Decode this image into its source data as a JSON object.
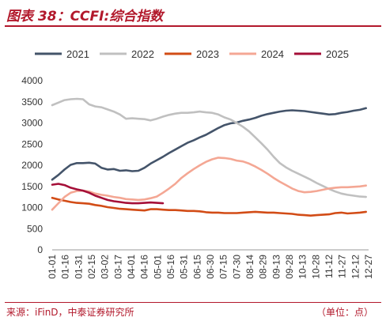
{
  "header": {
    "title": "图表 38：CCFI:综合指数"
  },
  "footer": {
    "source": "来源：iFinD，中泰证券研究所",
    "unit": "（单位：点）"
  },
  "chart_data": {
    "type": "line",
    "title": "",
    "xlabel": "",
    "ylabel": "",
    "ylim": [
      0,
      4000
    ],
    "yticks": [
      0,
      500,
      1000,
      1500,
      2000,
      2500,
      3000,
      3500,
      4000
    ],
    "grid": false,
    "legend_position": "top",
    "x_ticks": [
      "01-01",
      "01-16",
      "01-31",
      "02-15",
      "03-02",
      "03-17",
      "04-01",
      "04-16",
      "05-01",
      "05-16",
      "05-31",
      "06-15",
      "06-30",
      "07-15",
      "07-30",
      "08-14",
      "08-29",
      "09-13",
      "09-28",
      "10-13",
      "10-28",
      "11-12",
      "11-27",
      "12-12",
      "12-27"
    ],
    "x_range": [
      1,
      361
    ],
    "series": [
      {
        "name": "2021",
        "color": "#44546a",
        "x": [
          1,
          8,
          15,
          22,
          29,
          36,
          43,
          50,
          57,
          64,
          71,
          78,
          85,
          92,
          99,
          106,
          113,
          120,
          127,
          134,
          141,
          148,
          155,
          162,
          169,
          176,
          183,
          190,
          197,
          204,
          211,
          218,
          225,
          232,
          239,
          246,
          253,
          260,
          267,
          274,
          281,
          288,
          295,
          302,
          309,
          316,
          323,
          330,
          337,
          344,
          351,
          358
        ],
        "y": [
          1660,
          1770,
          1900,
          2010,
          2050,
          2050,
          2060,
          2040,
          1940,
          1900,
          1910,
          1870,
          1880,
          1860,
          1870,
          1940,
          2040,
          2120,
          2200,
          2290,
          2370,
          2450,
          2530,
          2590,
          2660,
          2720,
          2800,
          2880,
          2950,
          2990,
          3010,
          3050,
          3080,
          3120,
          3170,
          3210,
          3240,
          3270,
          3290,
          3300,
          3290,
          3280,
          3260,
          3240,
          3220,
          3200,
          3210,
          3240,
          3260,
          3290,
          3310,
          3350
        ]
      },
      {
        "name": "2022",
        "color": "#c0c0c0",
        "x": [
          1,
          8,
          15,
          22,
          29,
          36,
          43,
          50,
          57,
          64,
          71,
          78,
          85,
          92,
          99,
          106,
          113,
          120,
          127,
          134,
          141,
          148,
          155,
          162,
          169,
          176,
          183,
          190,
          197,
          204,
          211,
          218,
          225,
          232,
          239,
          246,
          253,
          260,
          267,
          274,
          281,
          288,
          295,
          302,
          309,
          316,
          323,
          330,
          337,
          344,
          351,
          358
        ],
        "y": [
          3420,
          3480,
          3540,
          3560,
          3570,
          3560,
          3440,
          3390,
          3370,
          3320,
          3270,
          3200,
          3100,
          3110,
          3100,
          3090,
          3060,
          3100,
          3150,
          3190,
          3220,
          3240,
          3240,
          3250,
          3270,
          3250,
          3240,
          3200,
          3130,
          3080,
          3000,
          2910,
          2800,
          2660,
          2520,
          2370,
          2200,
          2050,
          1950,
          1870,
          1800,
          1730,
          1660,
          1580,
          1510,
          1440,
          1380,
          1330,
          1300,
          1280,
          1260,
          1250
        ]
      },
      {
        "name": "2023",
        "color": "#d24c16",
        "x": [
          1,
          8,
          15,
          22,
          29,
          36,
          43,
          50,
          57,
          64,
          71,
          78,
          85,
          92,
          99,
          106,
          113,
          120,
          127,
          134,
          141,
          148,
          155,
          162,
          169,
          176,
          183,
          190,
          197,
          204,
          211,
          218,
          225,
          232,
          239,
          246,
          253,
          260,
          267,
          274,
          281,
          288,
          295,
          302,
          309,
          316,
          323,
          330,
          337,
          344,
          351,
          358
        ],
        "y": [
          1230,
          1190,
          1160,
          1130,
          1110,
          1100,
          1090,
          1060,
          1040,
          1010,
          990,
          970,
          960,
          950,
          940,
          930,
          960,
          960,
          950,
          940,
          940,
          930,
          920,
          920,
          910,
          890,
          880,
          880,
          870,
          870,
          870,
          880,
          890,
          900,
          890,
          880,
          880,
          870,
          860,
          850,
          830,
          820,
          810,
          820,
          830,
          840,
          870,
          880,
          860,
          870,
          880,
          900
        ]
      },
      {
        "name": "2024",
        "color": "#f4a794",
        "x": [
          1,
          8,
          15,
          22,
          29,
          36,
          43,
          50,
          57,
          64,
          71,
          78,
          85,
          92,
          99,
          106,
          113,
          120,
          127,
          134,
          141,
          148,
          155,
          162,
          169,
          176,
          183,
          190,
          197,
          204,
          211,
          218,
          225,
          232,
          239,
          246,
          253,
          260,
          267,
          274,
          281,
          288,
          295,
          302,
          309,
          316,
          323,
          330,
          337,
          344,
          351,
          358
        ],
        "y": [
          950,
          1100,
          1250,
          1350,
          1390,
          1400,
          1380,
          1330,
          1300,
          1280,
          1250,
          1230,
          1200,
          1190,
          1180,
          1190,
          1220,
          1260,
          1350,
          1450,
          1560,
          1700,
          1810,
          1910,
          2000,
          2080,
          2140,
          2180,
          2170,
          2150,
          2110,
          2090,
          2040,
          1970,
          1890,
          1800,
          1700,
          1610,
          1530,
          1450,
          1390,
          1360,
          1370,
          1390,
          1420,
          1450,
          1470,
          1480,
          1480,
          1490,
          1500,
          1520
        ]
      },
      {
        "name": "2025",
        "color": "#a50f38",
        "x": [
          1,
          8,
          15,
          22,
          29,
          36,
          43,
          50,
          57,
          64,
          71,
          78,
          85,
          92,
          99,
          106,
          113,
          120,
          127
        ],
        "y": [
          1540,
          1560,
          1530,
          1470,
          1430,
          1400,
          1350,
          1280,
          1230,
          1180,
          1150,
          1130,
          1110,
          1100,
          1100,
          1110,
          1120,
          1110,
          1100
        ]
      }
    ]
  }
}
